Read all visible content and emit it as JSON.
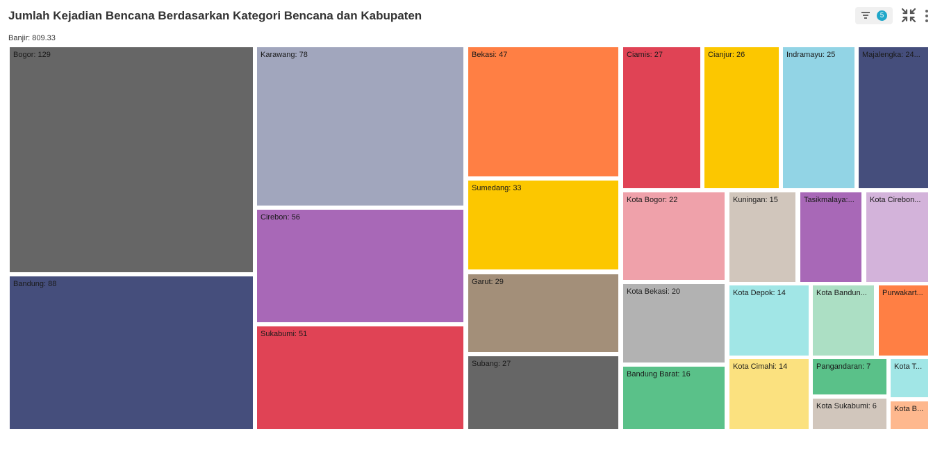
{
  "header": {
    "title": "Jumlah Kejadian Bencana Berdasarkan Kategori Bencana dan Kabupaten",
    "filter_count": "5",
    "icons": [
      "filter-icon",
      "collapse-icon",
      "more-vert-icon"
    ]
  },
  "chart_data": {
    "type": "treemap",
    "title": "Jumlah Kejadian Bencana Berdasarkan Kategori Bencana dan Kabupaten",
    "group_label": "Banjir: 809.33",
    "group": "Banjir",
    "group_total": 809.33,
    "items": [
      {
        "label": "Bogor: 129",
        "name": "Bogor",
        "value": 129,
        "color": "#666666"
      },
      {
        "label": "Bandung: 88",
        "name": "Bandung",
        "value": 88,
        "color": "#454e7c"
      },
      {
        "label": "Karawang: 78",
        "name": "Karawang",
        "value": 78,
        "color": "#a1a6bd"
      },
      {
        "label": "Cirebon: 56",
        "name": "Cirebon",
        "value": 56,
        "color": "#a868b7"
      },
      {
        "label": "Sukabumi: 51",
        "name": "Sukabumi",
        "value": 51,
        "color": "#e04355"
      },
      {
        "label": "Bekasi: 47",
        "name": "Bekasi",
        "value": 47,
        "color": "#ff7f44"
      },
      {
        "label": "Sumedang: 33",
        "name": "Sumedang",
        "value": 33,
        "color": "#fcc700"
      },
      {
        "label": "Garut: 29",
        "name": "Garut",
        "value": 29,
        "color": "#a38f79"
      },
      {
        "label": "Subang: 27",
        "name": "Subang",
        "value": 27,
        "color": "#666666"
      },
      {
        "label": "Ciamis: 27",
        "name": "Ciamis",
        "value": 27,
        "color": "#e04355"
      },
      {
        "label": "Cianjur: 26",
        "name": "Cianjur",
        "value": 26,
        "color": "#fcc700"
      },
      {
        "label": "Indramayu: 25",
        "name": "Indramayu",
        "value": 25,
        "color": "#92d4e5"
      },
      {
        "label": "Majalengka: 24...",
        "name": "Majalengka",
        "value": 24,
        "color": "#454e7c"
      },
      {
        "label": "Kota Bogor: 22",
        "name": "Kota Bogor",
        "value": 22,
        "color": "#efa1aa"
      },
      {
        "label": "Kuningan: 15",
        "name": "Kuningan",
        "value": 15,
        "color": "#d1c6bc"
      },
      {
        "label": "Tasikmalaya:...",
        "name": "Tasikmalaya",
        "value": 15,
        "color": "#a868b7"
      },
      {
        "label": "Kota Cirebon...",
        "name": "Kota Cirebon",
        "value": 15,
        "color": "#d3b3da"
      },
      {
        "label": "Kota Bekasi: 20",
        "name": "Kota Bekasi",
        "value": 20,
        "color": "#b2b2b2"
      },
      {
        "label": "Bandung Barat: 16",
        "name": "Bandung Barat",
        "value": 16,
        "color": "#5ac189"
      },
      {
        "label": "Kota Depok: 14",
        "name": "Kota Depok",
        "value": 14,
        "color": "#a1e6e6"
      },
      {
        "label": "Kota Bandun...",
        "name": "Kota Bandung",
        "value": 11,
        "color": "#acdfc4"
      },
      {
        "label": "Purwakart...",
        "name": "Purwakarta",
        "value": 9,
        "color": "#ff7f44"
      },
      {
        "label": "Kota Cimahi: 14",
        "name": "Kota Cimahi",
        "value": 14,
        "color": "#fbe17f"
      },
      {
        "label": "Pangandaran: 7",
        "name": "Pangandaran",
        "value": 7,
        "color": "#5ac189"
      },
      {
        "label": "Kota Sukabumi: 6",
        "name": "Kota Sukabumi",
        "value": 6,
        "color": "#d1c6bc"
      },
      {
        "label": "Kota T...",
        "name": "Kota Tasikmalaya",
        "value": 4,
        "color": "#a1e6e6"
      },
      {
        "label": "Kota B...",
        "name": "Kota Banjar",
        "value": 3,
        "color": "#feb88e"
      }
    ]
  }
}
